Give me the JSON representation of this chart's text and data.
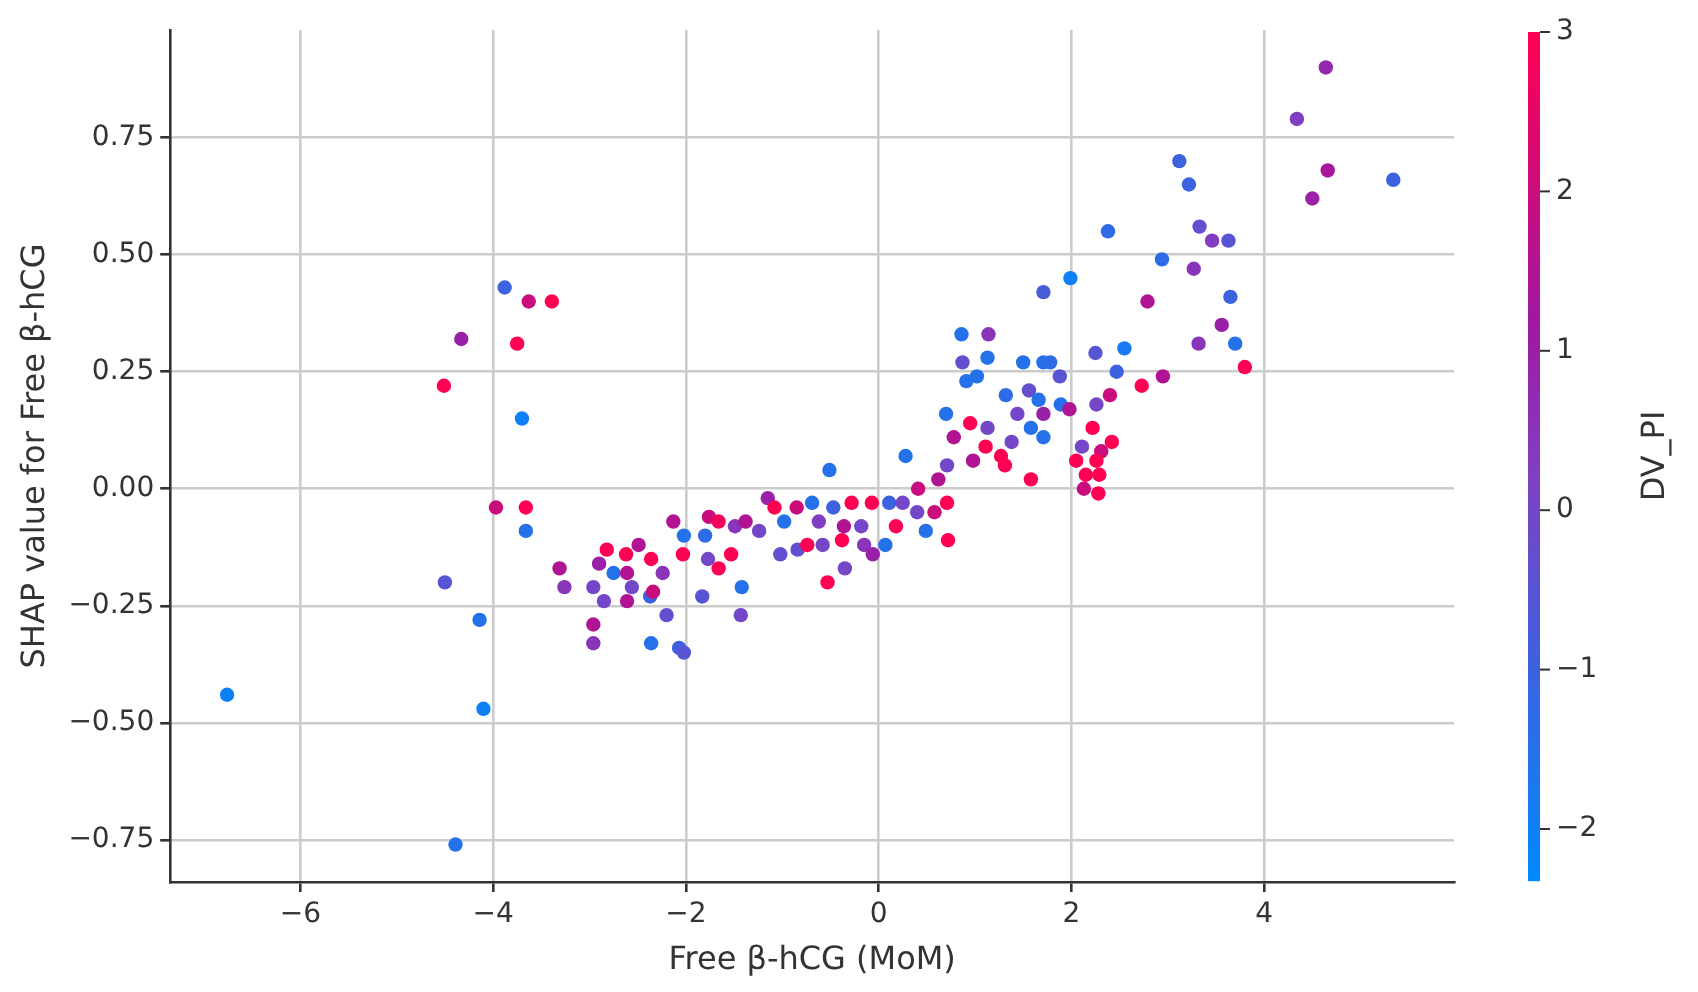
{
  "chart_data": {
    "type": "scatter",
    "xlabel": "Free β-hCG (MoM)",
    "ylabel": "SHAP value for Free β-hCG",
    "clabel": "DV_PI",
    "x": [
      -6.76,
      -3.88,
      -3.63,
      -3.39,
      -4.33,
      -3.75,
      -4.51,
      -3.7,
      -3.97,
      -3.66,
      -3.66,
      -4.5,
      -4.14,
      -4.1,
      -4.39,
      -3.31,
      -3.26,
      -2.96,
      -2.96,
      -2.96,
      -2.9,
      -2.82,
      -2.85,
      -2.75,
      -2.62,
      -2.61,
      -2.61,
      -2.49,
      -2.56,
      -2.36,
      -2.36,
      -2.37,
      -2.34,
      -2.24,
      -2.2,
      -2.13,
      -2.07,
      -2.02,
      -2.03,
      -2.02,
      -1.8,
      -1.76,
      -1.66,
      -1.77,
      -1.66,
      -1.83,
      -1.42,
      -1.43,
      -1.53,
      -1.49,
      -1.38,
      -1.24,
      -1.15,
      -1.08,
      -1.02,
      -0.98,
      -0.85,
      -0.84,
      -0.74,
      -0.69,
      -0.62,
      -0.58,
      -0.53,
      -0.51,
      -0.47,
      -0.38,
      -0.36,
      -0.35,
      -0.28,
      -0.18,
      -0.15,
      -0.06,
      -0.07,
      0.07,
      0.11,
      0.18,
      0.28,
      0.25,
      0.4,
      0.41,
      0.49,
      0.58,
      0.62,
      0.72,
      0.71,
      0.71,
      0.7,
      0.86,
      1.14,
      0.87,
      0.91,
      1.02,
      0.78,
      0.95,
      0.98,
      1.11,
      1.27,
      1.32,
      1.13,
      1.38,
      4.64,
      4.34,
      4.66,
      4.5,
      5.34,
      3.12,
      3.22,
      2.38,
      3.33,
      3.46,
      3.63,
      2.94,
      3.27,
      1.99,
      1.71,
      2.79,
      3.65,
      3.56,
      3.7,
      3.32,
      3.8,
      2.55,
      2.25,
      2.47,
      2.95,
      2.73,
      2.4,
      1.13,
      1.5,
      1.71,
      1.78,
      1.88,
      1.56,
      1.66,
      1.44,
      1.71,
      1.89,
      1.98,
      2.26,
      2.22,
      1.58,
      1.71,
      2.11,
      2.42,
      2.31,
      2.05,
      1.58,
      2.26,
      2.15,
      2.29,
      2.13,
      2.28,
      1.31
    ],
    "values": [
      -0.44,
      0.43,
      0.4,
      0.4,
      0.32,
      0.31,
      0.22,
      0.15,
      -0.04,
      -0.04,
      -0.09,
      -0.2,
      -0.28,
      -0.47,
      -0.76,
      -0.17,
      -0.21,
      -0.21,
      -0.29,
      -0.33,
      -0.16,
      -0.13,
      -0.24,
      -0.18,
      -0.14,
      -0.18,
      -0.24,
      -0.12,
      -0.21,
      -0.33,
      -0.15,
      -0.23,
      -0.22,
      -0.18,
      -0.27,
      -0.07,
      -0.34,
      -0.35,
      -0.14,
      -0.1,
      -0.1,
      -0.06,
      -0.07,
      -0.15,
      -0.17,
      -0.23,
      -0.21,
      -0.27,
      -0.14,
      -0.08,
      -0.07,
      -0.09,
      -0.02,
      -0.04,
      -0.14,
      -0.07,
      -0.04,
      -0.13,
      -0.12,
      -0.03,
      -0.07,
      -0.12,
      -0.2,
      0.04,
      -0.04,
      -0.11,
      -0.08,
      -0.17,
      -0.03,
      -0.08,
      -0.12,
      -0.14,
      -0.03,
      -0.12,
      -0.03,
      -0.08,
      0.07,
      -0.03,
      -0.05,
      0.0,
      -0.09,
      -0.05,
      0.02,
      -0.11,
      0.05,
      -0.03,
      0.16,
      0.33,
      0.33,
      0.27,
      0.23,
      0.24,
      0.11,
      0.14,
      0.06,
      0.09,
      0.07,
      0.2,
      0.13,
      0.1,
      0.9,
      0.79,
      0.68,
      0.62,
      0.66,
      0.7,
      0.65,
      0.55,
      0.56,
      0.53,
      0.53,
      0.49,
      0.47,
      0.45,
      0.42,
      0.4,
      0.41,
      0.35,
      0.31,
      0.31,
      0.26,
      0.3,
      0.29,
      0.25,
      0.24,
      0.22,
      0.2,
      0.28,
      0.27,
      0.27,
      0.27,
      0.24,
      0.21,
      0.19,
      0.16,
      0.16,
      0.18,
      0.17,
      0.18,
      0.13,
      0.13,
      0.11,
      0.09,
      0.1,
      0.08,
      0.06,
      0.02,
      0.06,
      0.03,
      0.03,
      0.0,
      -0.01,
      0.05
    ],
    "cvalues": [
      -2,
      -1,
      2,
      3,
      1,
      3,
      3,
      -2,
      2,
      3,
      -1.5,
      -0.5,
      -1.5,
      -2,
      -1.5,
      1.5,
      0.5,
      0,
      1.5,
      0.5,
      1,
      3,
      0,
      -1.5,
      3,
      1.5,
      1.5,
      1.5,
      0,
      -1.5,
      3,
      -1,
      2,
      0.5,
      -0.3,
      1.5,
      -1,
      -0.5,
      3,
      -1.5,
      -1.3,
      2,
      2.8,
      0,
      3,
      -0.5,
      -1.5,
      0,
      3,
      0.5,
      1.5,
      0,
      1,
      3,
      -0.3,
      -1.5,
      2,
      -0.3,
      3,
      -1.5,
      0.3,
      0,
      3,
      -1.5,
      -1,
      3,
      1.5,
      0,
      3,
      0,
      0.5,
      1,
      3,
      -1.5,
      -1,
      3,
      -1.5,
      0,
      0,
      2,
      -1.5,
      2,
      1.5,
      3,
      0,
      3,
      -1.5,
      -1.5,
      0.5,
      -0.3,
      -1.5,
      -1.5,
      1.5,
      3,
      1.5,
      3,
      3,
      -1.3,
      0,
      0,
      0.8,
      0.3,
      1.3,
      1,
      -1,
      -1,
      -1,
      -1.3,
      -0.3,
      0.3,
      -0.5,
      -1.3,
      0.5,
      -2,
      -0.8,
      1.5,
      -1,
      1,
      -1.5,
      0.5,
      3,
      -1.8,
      -0.5,
      -1,
      1.5,
      3,
      2,
      -1.5,
      -1.5,
      -1.5,
      -1.3,
      -0.5,
      -0.3,
      -1.5,
      0,
      1,
      -1.5,
      1.5,
      0,
      3,
      -1.5,
      -1.5,
      0,
      3,
      2,
      3,
      3,
      3,
      3,
      3,
      2,
      3,
      3
    ],
    "xlim": [
      -7.35,
      5.97
    ],
    "ylim": [
      -0.84,
      0.98
    ],
    "xticks": [
      {
        "value": -6,
        "label": "−6"
      },
      {
        "value": -4,
        "label": "−4"
      },
      {
        "value": -2,
        "label": "−2"
      },
      0,
      2,
      4
    ],
    "yticks": [
      {
        "value": -0.75,
        "label": "−0.75"
      },
      {
        "value": -0.5,
        "label": "−0.50"
      },
      {
        "value": -0.25,
        "label": "−0.25"
      },
      {
        "value": 0,
        "label": "0.00"
      },
      0.25,
      {
        "value": 0.5,
        "label": "0.50"
      },
      0.75
    ],
    "clim": [
      -2.32,
      3
    ],
    "cticks": [
      {
        "value": -2,
        "label": "−2"
      },
      {
        "value": -1,
        "label": "−1"
      },
      0,
      1,
      2,
      3
    ],
    "grid": true,
    "marker": "circle",
    "legend": false
  }
}
